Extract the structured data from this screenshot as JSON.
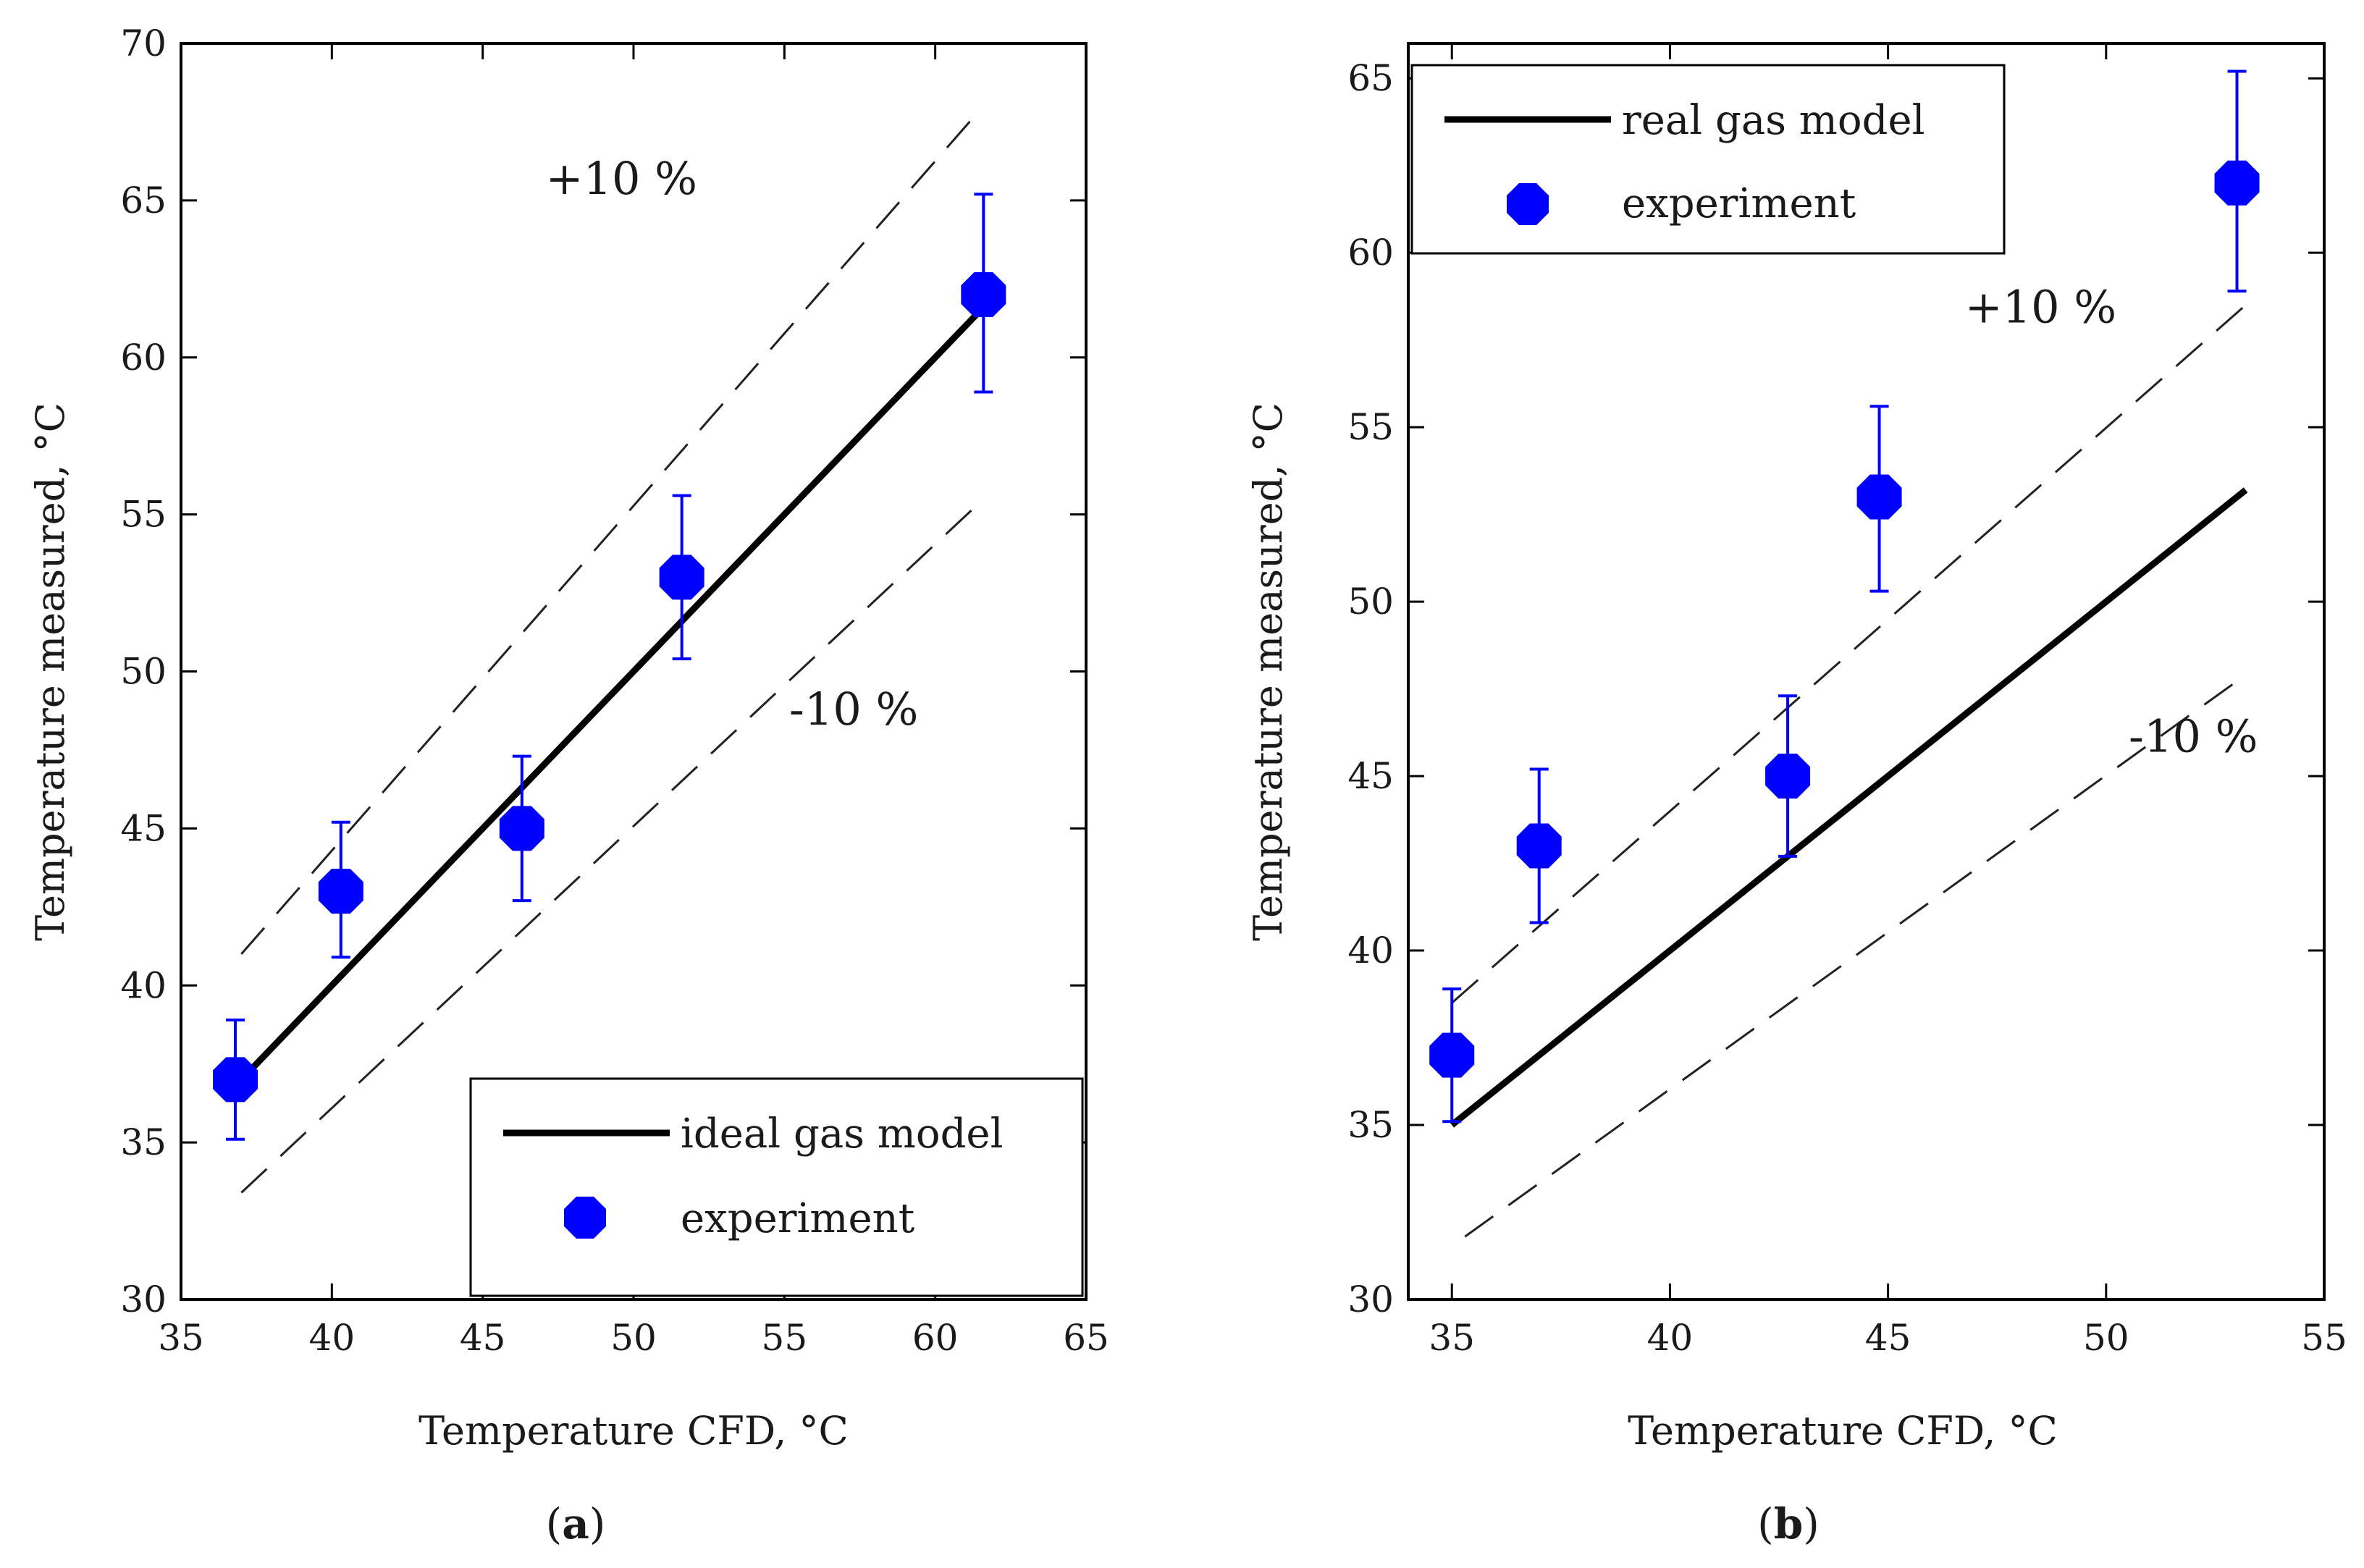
{
  "chart_data": [
    {
      "type": "scatter",
      "panel_label": "(a)",
      "panel_letter": "a",
      "xlabel": "Temperature CFD, °C",
      "ylabel": "Temperature measured,  °C",
      "xlim": [
        35,
        65
      ],
      "ylim": [
        30,
        70
      ],
      "xticks": [
        35,
        40,
        45,
        50,
        55,
        60,
        65
      ],
      "yticks": [
        30,
        35,
        40,
        45,
        50,
        55,
        60,
        65,
        70
      ],
      "grid": false,
      "legend_placement": "bottom-right",
      "series": [
        {
          "name": "ideal gas model",
          "kind": "line",
          "x": [
            37.2,
            61.5
          ],
          "y": [
            37.2,
            61.5
          ]
        },
        {
          "name": "experiment",
          "kind": "points",
          "color": "#0000ff",
          "x": [
            36.8,
            40.3,
            46.3,
            51.6,
            61.6
          ],
          "y": [
            37.0,
            43.0,
            45.0,
            53.0,
            62.0
          ],
          "y_err_low": [
            1.9,
            2.1,
            2.3,
            2.6,
            3.1
          ],
          "y_err_high": [
            1.9,
            2.2,
            2.3,
            2.6,
            3.2
          ]
        },
        {
          "kind": "dashed",
          "x": [
            37.0,
            61.5
          ],
          "y": [
            41.0,
            67.9
          ]
        },
        {
          "kind": "dashed",
          "x": [
            37.0,
            61.5
          ],
          "y": [
            33.4,
            55.4
          ]
        }
      ],
      "annotations": [
        {
          "text": "+10 %",
          "x": 49.6,
          "y": 65.2
        },
        {
          "text": "-10 %",
          "x": 57.3,
          "y": 48.3
        }
      ]
    },
    {
      "type": "scatter",
      "panel_label": "(b)",
      "panel_letter": "b",
      "xlabel": "Temperature CFD, °C",
      "ylabel": "Temperature measured,  °C",
      "xlim": [
        34,
        55
      ],
      "ylim": [
        30,
        66
      ],
      "xticks": [
        35,
        40,
        45,
        50,
        55
      ],
      "yticks": [
        30,
        35,
        40,
        45,
        50,
        55,
        60,
        65
      ],
      "grid": false,
      "legend_placement": "top-left",
      "series": [
        {
          "name": "real gas model",
          "kind": "line",
          "x": [
            35.0,
            53.2
          ],
          "y": [
            35.0,
            53.2
          ]
        },
        {
          "name": "experiment",
          "kind": "points",
          "color": "#0000ff",
          "x": [
            35.0,
            37.0,
            42.7,
            44.8,
            53.0
          ],
          "y": [
            37.0,
            43.0,
            45.0,
            53.0,
            62.0
          ],
          "y_err_low": [
            1.9,
            2.2,
            2.3,
            2.7,
            3.1
          ],
          "y_err_high": [
            1.9,
            2.2,
            2.3,
            2.6,
            3.2
          ]
        },
        {
          "kind": "dashed",
          "x": [
            35.0,
            53.2
          ],
          "y": [
            38.5,
            58.5
          ]
        },
        {
          "kind": "dashed",
          "x": [
            35.3,
            53.2
          ],
          "y": [
            31.8,
            47.9
          ]
        }
      ],
      "annotations": [
        {
          "text": "+10 %",
          "x": 48.5,
          "y": 58.0
        },
        {
          "text": "-10 %",
          "x": 52.0,
          "y": 45.7
        }
      ]
    }
  ]
}
